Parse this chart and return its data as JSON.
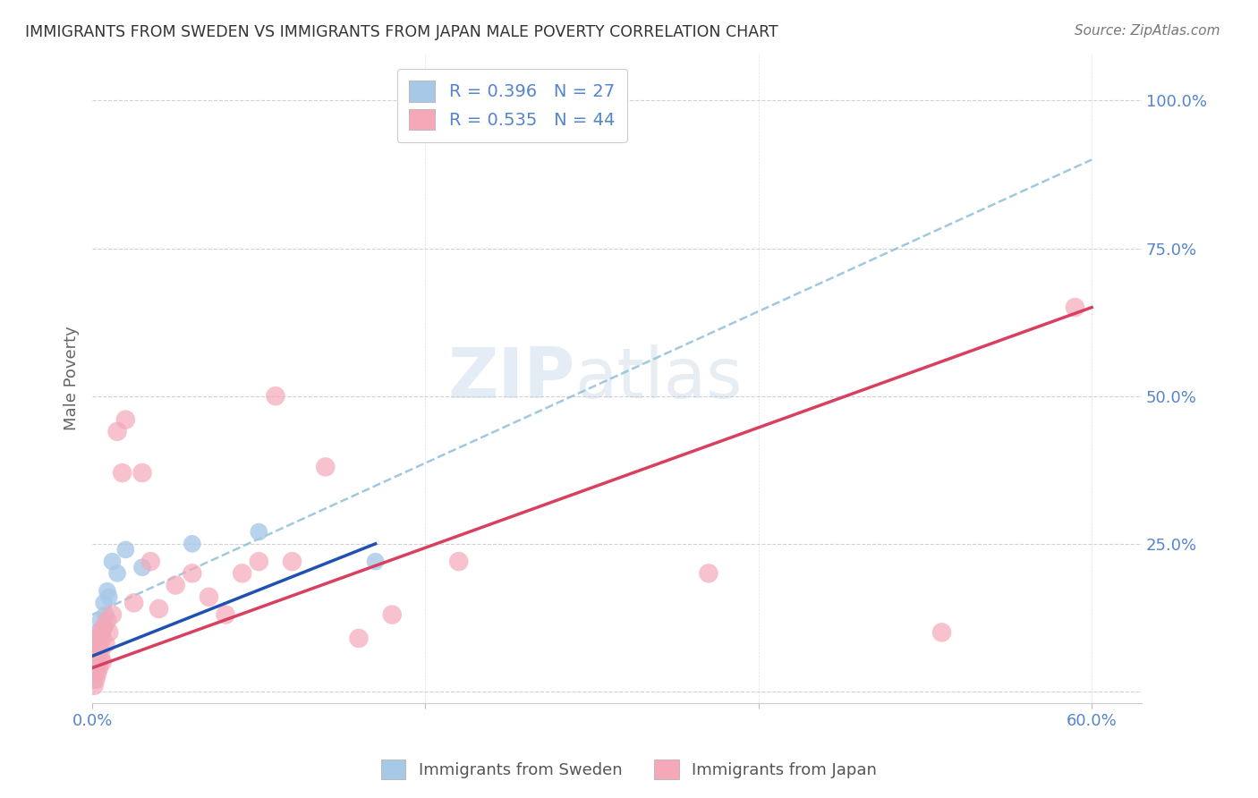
{
  "title": "IMMIGRANTS FROM SWEDEN VS IMMIGRANTS FROM JAPAN MALE POVERTY CORRELATION CHART",
  "source": "Source: ZipAtlas.com",
  "ylabel_left": "Male Poverty",
  "xlim": [
    0.0,
    0.63
  ],
  "ylim": [
    -0.02,
    1.08
  ],
  "xtick_labels": [
    "0.0%",
    "",
    "",
    "60.0%"
  ],
  "xtick_values": [
    0.0,
    0.2,
    0.4,
    0.6
  ],
  "ytick_labels_right": [
    "100.0%",
    "75.0%",
    "50.0%",
    "25.0%"
  ],
  "ytick_values_right": [
    1.0,
    0.75,
    0.5,
    0.25
  ],
  "sweden_R": 0.396,
  "sweden_N": 27,
  "japan_R": 0.535,
  "japan_N": 44,
  "sweden_color": "#a8c8e8",
  "japan_color": "#f4a8b8",
  "sweden_line_color": "#2050b0",
  "japan_line_color": "#d84060",
  "dashed_line_color": "#90c0dc",
  "legend_label_sweden": "Immigrants from Sweden",
  "legend_label_japan": "Immigrants from Japan",
  "watermark_zip": "ZIP",
  "watermark_atlas": "atlas",
  "background_color": "#ffffff",
  "grid_color": "#cccccc",
  "title_color": "#333333",
  "tick_color": "#5585cc",
  "sweden_x": [
    0.001,
    0.001,
    0.001,
    0.002,
    0.002,
    0.002,
    0.002,
    0.003,
    0.003,
    0.003,
    0.004,
    0.004,
    0.005,
    0.005,
    0.006,
    0.007,
    0.007,
    0.008,
    0.009,
    0.01,
    0.012,
    0.015,
    0.02,
    0.03,
    0.06,
    0.1,
    0.17
  ],
  "sweden_y": [
    0.02,
    0.04,
    0.06,
    0.03,
    0.05,
    0.07,
    0.09,
    0.04,
    0.07,
    0.1,
    0.06,
    0.09,
    0.08,
    0.12,
    0.1,
    0.11,
    0.15,
    0.13,
    0.17,
    0.16,
    0.22,
    0.2,
    0.24,
    0.21,
    0.25,
    0.27,
    0.22
  ],
  "japan_x": [
    0.001,
    0.001,
    0.001,
    0.001,
    0.002,
    0.002,
    0.002,
    0.002,
    0.003,
    0.003,
    0.003,
    0.004,
    0.004,
    0.005,
    0.005,
    0.006,
    0.006,
    0.007,
    0.008,
    0.009,
    0.01,
    0.012,
    0.015,
    0.018,
    0.02,
    0.025,
    0.03,
    0.035,
    0.04,
    0.05,
    0.06,
    0.07,
    0.08,
    0.09,
    0.1,
    0.11,
    0.12,
    0.14,
    0.16,
    0.18,
    0.22,
    0.37,
    0.51,
    0.59
  ],
  "japan_y": [
    0.01,
    0.03,
    0.05,
    0.07,
    0.02,
    0.04,
    0.06,
    0.08,
    0.03,
    0.05,
    0.09,
    0.04,
    0.07,
    0.06,
    0.1,
    0.05,
    0.09,
    0.11,
    0.08,
    0.12,
    0.1,
    0.13,
    0.44,
    0.37,
    0.46,
    0.15,
    0.37,
    0.22,
    0.14,
    0.18,
    0.2,
    0.16,
    0.13,
    0.2,
    0.22,
    0.5,
    0.22,
    0.38,
    0.09,
    0.13,
    0.22,
    0.2,
    0.1,
    0.65
  ],
  "dashed_line_x0": 0.0,
  "dashed_line_y0": 0.13,
  "dashed_line_x1": 0.6,
  "dashed_line_y1": 0.9,
  "japan_line_x0": 0.0,
  "japan_line_y0": 0.04,
  "japan_line_x1": 0.6,
  "japan_line_y1": 0.65,
  "sweden_line_x0": 0.0,
  "sweden_line_y0": 0.06,
  "sweden_line_x1": 0.17,
  "sweden_line_y1": 0.25
}
